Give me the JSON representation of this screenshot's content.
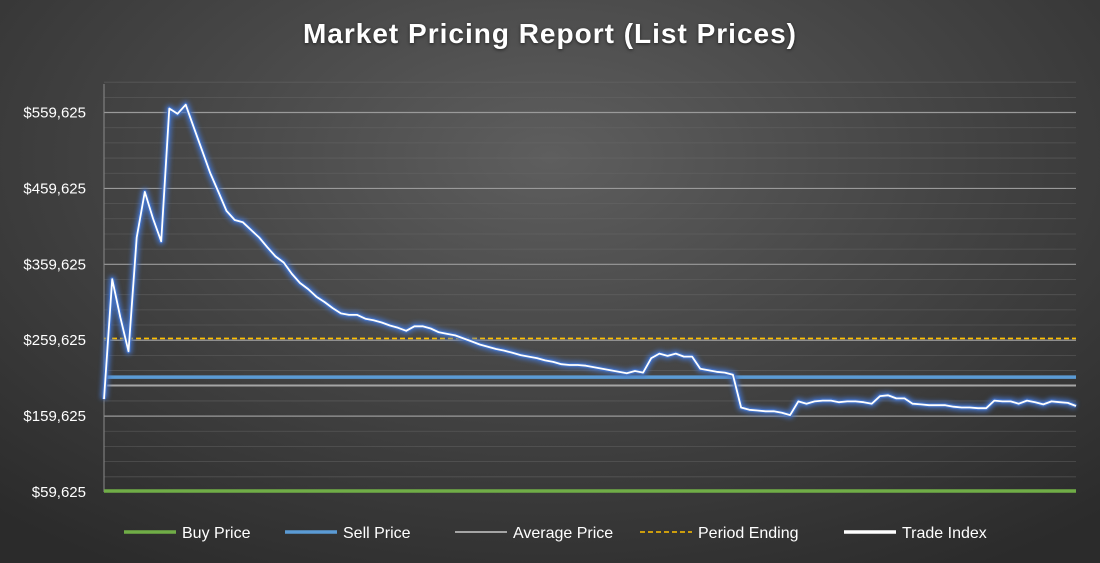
{
  "chart_data": {
    "type": "line",
    "title": "Market Pricing Report (List Prices)",
    "xlabel": "",
    "ylabel": "",
    "ylim": [
      59625,
      619625
    ],
    "yticks": [
      59625,
      159625,
      259625,
      359625,
      459625,
      559625
    ],
    "ytick_labels": [
      "$59,625",
      "$159,625",
      "$259,625",
      "$359,625",
      "$459,625",
      "$559,625"
    ],
    "grid": true,
    "legend_position": "bottom",
    "horizontal_lines": [
      {
        "name": "Buy Price",
        "value": 61000,
        "color": "#70ad47",
        "style": "solid"
      },
      {
        "name": "Sell Price",
        "value": 211000,
        "color": "#5b9bd5",
        "style": "solid"
      },
      {
        "name": "Average Price",
        "value": 200000,
        "color": "#a5a5a5",
        "style": "solid"
      },
      {
        "name": "Period Ending",
        "value": 262000,
        "color": "#ffc000",
        "style": "dashed"
      }
    ],
    "series": [
      {
        "name": "Trade Index",
        "color": "#ffffff",
        "glow": "#4472c4",
        "values": [
          182000,
          340000,
          290000,
          245000,
          395000,
          455000,
          420000,
          390000,
          565000,
          558000,
          570000,
          540000,
          510000,
          480000,
          455000,
          430000,
          418000,
          415000,
          405000,
          395000,
          382000,
          370000,
          362000,
          347000,
          335000,
          327000,
          317000,
          310000,
          302000,
          295000,
          293000,
          293000,
          288000,
          286000,
          283000,
          279000,
          276000,
          272000,
          278000,
          278000,
          275000,
          270000,
          268000,
          266000,
          262000,
          258000,
          254000,
          251000,
          248000,
          246000,
          243000,
          240000,
          238000,
          236000,
          233000,
          231000,
          228000,
          227000,
          227000,
          226000,
          224000,
          222000,
          220000,
          218000,
          216000,
          219000,
          217000,
          236000,
          242000,
          239000,
          242000,
          238000,
          238000,
          222000,
          220000,
          218000,
          217000,
          214000,
          171000,
          168000,
          167000,
          166000,
          166000,
          164000,
          161000,
          179000,
          176000,
          179000,
          180000,
          180000,
          178000,
          179000,
          179000,
          178000,
          176000,
          186000,
          187000,
          183000,
          183000,
          176000,
          175000,
          174000,
          174000,
          174000,
          172000,
          171000,
          171000,
          170000,
          170000,
          180000,
          179000,
          179000,
          176000,
          180000,
          178000,
          175000,
          179000,
          178000,
          177000,
          173000
        ]
      }
    ]
  }
}
